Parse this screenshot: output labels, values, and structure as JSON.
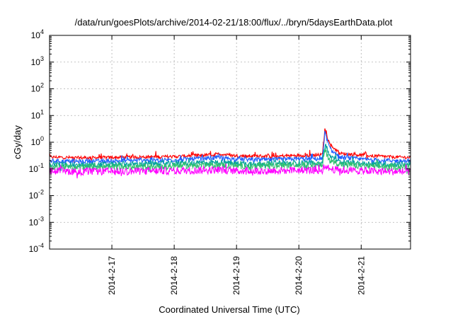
{
  "chart_data": {
    "type": "line",
    "title": "/data/run/goesPlots/archive/2014-02-21/18:00/flux/../bryn/5daysEarthData.plot",
    "xlabel": "Coordinated Universal Time (UTC)",
    "ylabel": "cGy/day",
    "y_scale": "log",
    "ylim": [
      0.0001,
      10000
    ],
    "xlim": [
      "2014-02-16 00:00",
      "2014-02-21 19:00"
    ],
    "grid": true,
    "y_ticks": [
      {
        "base": "10",
        "exp": "-4",
        "value": 0.0001
      },
      {
        "base": "10",
        "exp": "-3",
        "value": 0.001
      },
      {
        "base": "10",
        "exp": "-2",
        "value": 0.01
      },
      {
        "base": "10",
        "exp": "-1",
        "value": 0.1
      },
      {
        "base": "10",
        "exp": "0",
        "value": 1
      },
      {
        "base": "10",
        "exp": "1",
        "value": 10
      },
      {
        "base": "10",
        "exp": "2",
        "value": 100
      },
      {
        "base": "10",
        "exp": "3",
        "value": 1000
      },
      {
        "base": "10",
        "exp": "4",
        "value": 10000
      }
    ],
    "x_ticks": [
      "2014-2-17",
      "2014-2-18",
      "2014-2-19",
      "2014-2-20",
      "2014-2-21"
    ],
    "series": [
      {
        "color": "#ff0000",
        "x": [
          "2014-02-16 00:00",
          "2014-02-16 12:00",
          "2014-02-17 00:00",
          "2014-02-17 12:00",
          "2014-02-18 00:00",
          "2014-02-18 12:00",
          "2014-02-18 18:00",
          "2014-02-19 00:00",
          "2014-02-19 12:00",
          "2014-02-20 00:00",
          "2014-02-20 06:00",
          "2014-02-20 09:00",
          "2014-02-20 10:00",
          "2014-02-20 12:00",
          "2014-02-20 16:00",
          "2014-02-21 00:00",
          "2014-02-21 12:00",
          "2014-02-21 19:00"
        ],
        "values": [
          0.28,
          0.26,
          0.27,
          0.28,
          0.29,
          0.33,
          0.36,
          0.31,
          0.3,
          0.32,
          0.33,
          0.33,
          3.0,
          0.8,
          0.38,
          0.33,
          0.28,
          0.27
        ]
      },
      {
        "color": "#1f5fff",
        "x": [
          "2014-02-16 00:00",
          "2014-02-16 12:00",
          "2014-02-17 00:00",
          "2014-02-17 12:00",
          "2014-02-18 00:00",
          "2014-02-18 12:00",
          "2014-02-18 18:00",
          "2014-02-19 00:00",
          "2014-02-19 12:00",
          "2014-02-20 00:00",
          "2014-02-20 06:00",
          "2014-02-20 09:00",
          "2014-02-20 10:00",
          "2014-02-20 12:00",
          "2014-02-20 16:00",
          "2014-02-21 00:00",
          "2014-02-21 12:00",
          "2014-02-21 19:00"
        ],
        "values": [
          0.2,
          0.19,
          0.2,
          0.21,
          0.22,
          0.25,
          0.27,
          0.23,
          0.22,
          0.24,
          0.24,
          0.24,
          2.3,
          0.55,
          0.27,
          0.23,
          0.2,
          0.2
        ]
      },
      {
        "color": "#00a0a0",
        "x": [
          "2014-02-16 00:00",
          "2014-02-16 12:00",
          "2014-02-17 00:00",
          "2014-02-17 12:00",
          "2014-02-18 00:00",
          "2014-02-18 12:00",
          "2014-02-18 18:00",
          "2014-02-19 00:00",
          "2014-02-19 12:00",
          "2014-02-20 00:00",
          "2014-02-20 06:00",
          "2014-02-20 09:00",
          "2014-02-20 10:00",
          "2014-02-20 12:00",
          "2014-02-20 16:00",
          "2014-02-21 00:00",
          "2014-02-21 12:00",
          "2014-02-21 19:00"
        ],
        "values": [
          0.15,
          0.14,
          0.15,
          0.15,
          0.16,
          0.17,
          0.18,
          0.16,
          0.16,
          0.17,
          0.17,
          0.17,
          0.9,
          0.3,
          0.18,
          0.16,
          0.15,
          0.15
        ]
      },
      {
        "color": "#30c070",
        "x": [
          "2014-02-16 00:00",
          "2014-02-16 12:00",
          "2014-02-17 00:00",
          "2014-02-17 12:00",
          "2014-02-18 00:00",
          "2014-02-18 12:00",
          "2014-02-18 18:00",
          "2014-02-19 00:00",
          "2014-02-19 12:00",
          "2014-02-20 00:00",
          "2014-02-20 06:00",
          "2014-02-20 09:00",
          "2014-02-20 10:00",
          "2014-02-20 12:00",
          "2014-02-20 16:00",
          "2014-02-21 00:00",
          "2014-02-21 12:00",
          "2014-02-21 19:00"
        ],
        "values": [
          0.12,
          0.12,
          0.12,
          0.12,
          0.13,
          0.14,
          0.14,
          0.13,
          0.13,
          0.14,
          0.14,
          0.14,
          0.5,
          0.22,
          0.15,
          0.13,
          0.12,
          0.12
        ]
      },
      {
        "color": "#ff00ff",
        "x": [
          "2014-02-16 00:00",
          "2014-02-16 12:00",
          "2014-02-17 00:00",
          "2014-02-17 12:00",
          "2014-02-18 00:00",
          "2014-02-18 12:00",
          "2014-02-18 18:00",
          "2014-02-19 00:00",
          "2014-02-19 12:00",
          "2014-02-20 00:00",
          "2014-02-20 06:00",
          "2014-02-20 09:00",
          "2014-02-20 10:00",
          "2014-02-20 12:00",
          "2014-02-20 16:00",
          "2014-02-21 00:00",
          "2014-02-21 12:00",
          "2014-02-21 19:00"
        ],
        "values": [
          0.085,
          0.08,
          0.08,
          0.082,
          0.085,
          0.09,
          0.092,
          0.085,
          0.085,
          0.09,
          0.09,
          0.09,
          0.14,
          0.1,
          0.09,
          0.085,
          0.08,
          0.08
        ]
      }
    ]
  }
}
